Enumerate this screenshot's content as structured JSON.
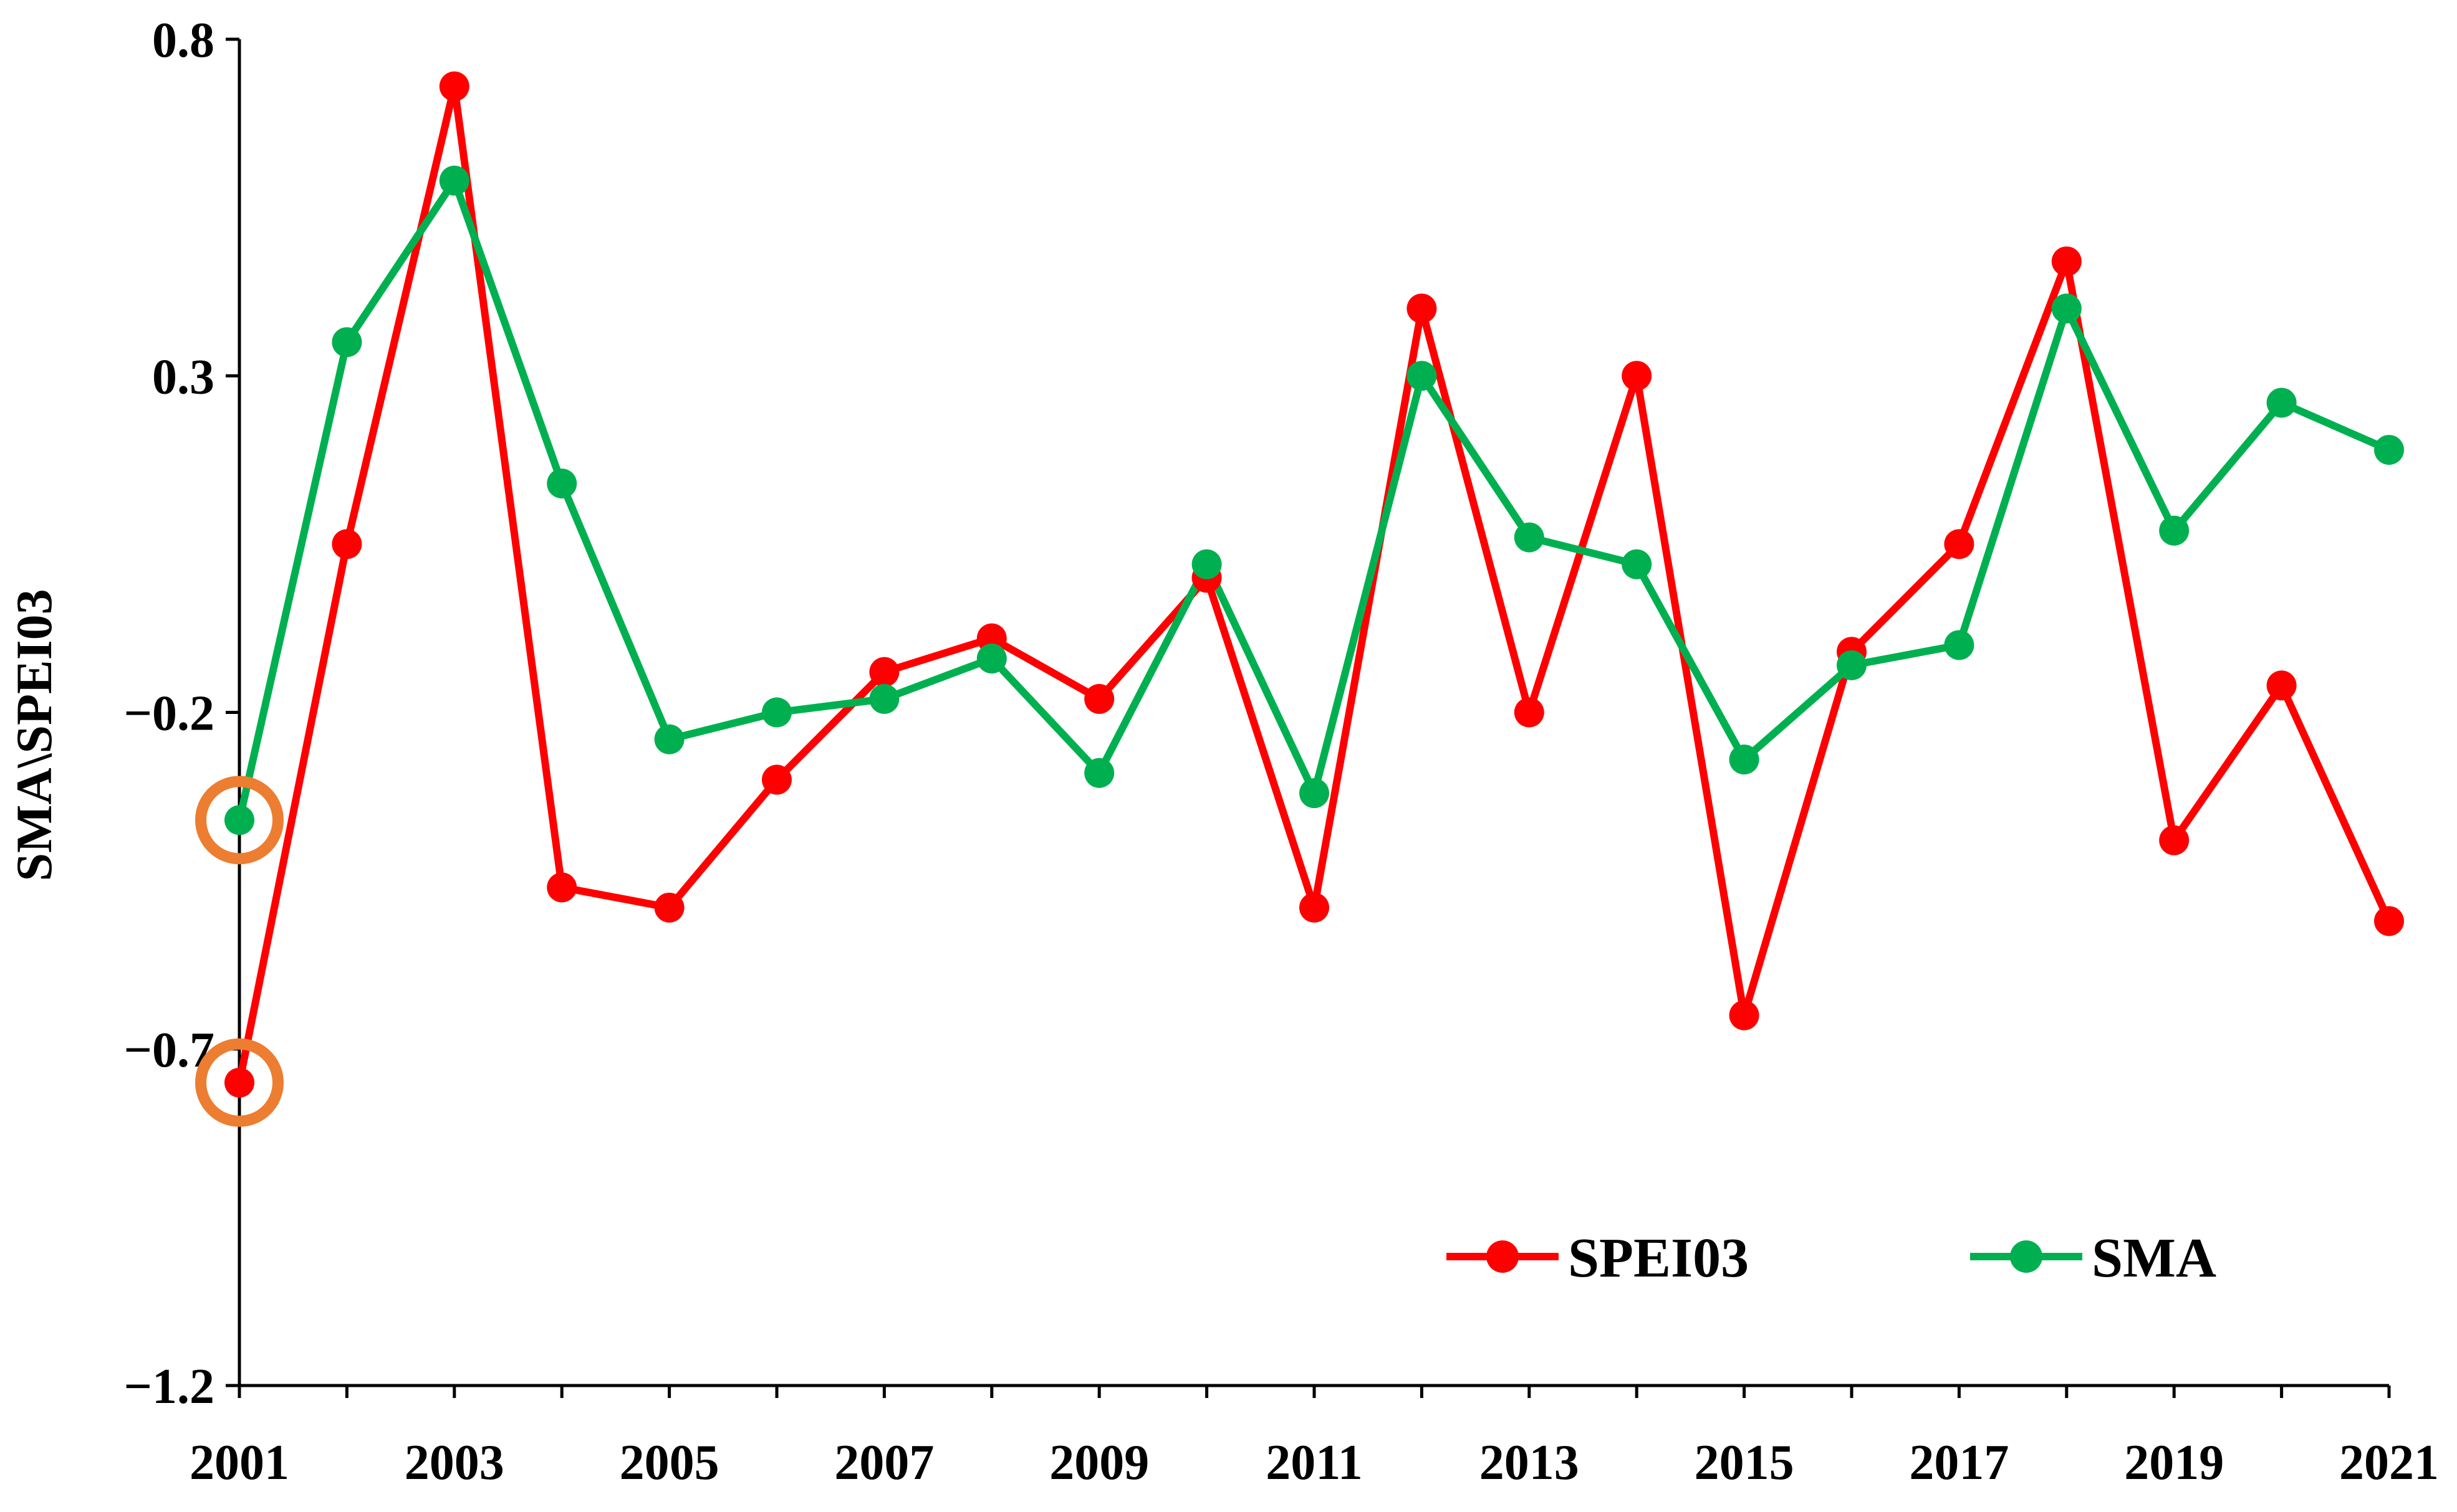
{
  "chart_data": {
    "type": "line",
    "title": "",
    "xlabel": "",
    "ylabel": "SMA\\SPEI03",
    "x": [
      2001,
      2002,
      2003,
      2004,
      2005,
      2006,
      2007,
      2008,
      2009,
      2010,
      2011,
      2012,
      2013,
      2014,
      2015,
      2016,
      2017,
      2018,
      2019,
      2020,
      2021
    ],
    "xlim": [
      2001,
      2021
    ],
    "xtick_labels": [
      "2001",
      "2003",
      "2005",
      "2007",
      "2009",
      "2011",
      "2013",
      "2015",
      "2017",
      "2019",
      "2021"
    ],
    "ylim": [
      -1.2,
      0.8
    ],
    "ytick_labels": [
      "0.8",
      "0.3",
      "−0.2",
      "−0.7",
      "−1.2"
    ],
    "grid": false,
    "legend_position": "bottom-right",
    "series": [
      {
        "name": "SPEI03",
        "color": "#ff0000",
        "values": [
          -0.75,
          0.05,
          0.73,
          -0.46,
          -0.49,
          -0.3,
          -0.14,
          -0.09,
          -0.18,
          0.0,
          -0.49,
          0.4,
          -0.2,
          0.3,
          -0.65,
          -0.11,
          0.05,
          0.47,
          -0.39,
          -0.16,
          -0.51
        ]
      },
      {
        "name": "SMA",
        "color": "#00b050",
        "values": [
          -0.36,
          0.35,
          0.59,
          0.14,
          -0.24,
          -0.2,
          -0.18,
          -0.12,
          -0.29,
          0.02,
          -0.32,
          0.3,
          0.06,
          0.02,
          -0.27,
          -0.13,
          -0.1,
          0.4,
          0.07,
          0.26,
          0.19
        ]
      }
    ],
    "annotations": [
      {
        "type": "circle-highlight",
        "series": "SMA",
        "x": 2001,
        "color": "#ed7d31"
      },
      {
        "type": "circle-highlight",
        "series": "SPEI03",
        "x": 2001,
        "color": "#ed7d31"
      }
    ]
  }
}
